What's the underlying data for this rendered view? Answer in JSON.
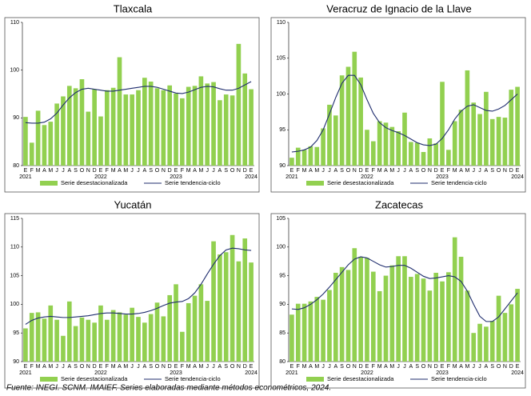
{
  "chart_data": [
    {
      "type": "bar",
      "title": "Tlaxcala",
      "categories": [
        "E",
        "F",
        "M",
        "A",
        "M",
        "J",
        "J",
        "A",
        "S",
        "O",
        "N",
        "D",
        "E",
        "F",
        "M",
        "A",
        "M",
        "J",
        "J",
        "A",
        "S",
        "O",
        "N",
        "D",
        "E",
        "F",
        "M",
        "A",
        "M",
        "J",
        "J",
        "A",
        "S",
        "O",
        "N",
        "D",
        "E"
      ],
      "x_years": [
        "2021",
        null,
        null,
        null,
        null,
        null,
        null,
        null,
        null,
        null,
        null,
        null,
        "2022",
        null,
        null,
        null,
        null,
        null,
        null,
        null,
        null,
        null,
        null,
        null,
        "2023",
        null,
        null,
        null,
        null,
        null,
        null,
        null,
        null,
        null,
        null,
        null,
        "2024"
      ],
      "ylim": [
        80,
        110
      ],
      "yticks": [
        80,
        90,
        100,
        110
      ],
      "series": [
        {
          "name": "Serie desestacionalizada",
          "type": "bar",
          "color": "#92d050",
          "values": [
            90.2,
            84.8,
            91.5,
            88.5,
            89.2,
            93.0,
            94.5,
            96.7,
            96.2,
            98.1,
            91.3,
            96.0,
            90.3,
            95.8,
            96.3,
            102.7,
            94.9,
            94.9,
            95.8,
            98.4,
            97.6,
            96.2,
            95.8,
            96.8,
            95.1,
            94.1,
            96.5,
            96.7,
            98.7,
            97.2,
            97.5,
            93.7,
            94.9,
            94.7,
            105.5,
            99.3,
            96.0
          ]
        },
        {
          "name": "Serie tendencia-ciclo",
          "type": "line",
          "color": "#1f2d6e",
          "values": [
            89.0,
            88.9,
            88.9,
            89.1,
            89.8,
            91.0,
            92.7,
            94.2,
            95.3,
            96.0,
            96.2,
            96.0,
            95.8,
            95.6,
            95.6,
            95.8,
            96.0,
            96.2,
            96.4,
            96.6,
            96.6,
            96.4,
            96.0,
            95.6,
            95.2,
            95.1,
            95.4,
            95.9,
            96.4,
            96.6,
            96.5,
            96.1,
            95.8,
            95.8,
            96.2,
            96.9,
            97.6
          ]
        }
      ]
    },
    {
      "type": "bar",
      "title": "Veracruz de Ignacio de la Llave",
      "categories": [
        "E",
        "F",
        "M",
        "A",
        "M",
        "J",
        "J",
        "A",
        "S",
        "O",
        "N",
        "D",
        "E",
        "F",
        "M",
        "A",
        "M",
        "J",
        "J",
        "A",
        "S",
        "O",
        "N",
        "D",
        "E",
        "F",
        "M",
        "A",
        "M",
        "J",
        "J",
        "A",
        "S",
        "O",
        "N",
        "D",
        "E"
      ],
      "x_years": [
        "2021",
        null,
        null,
        null,
        null,
        null,
        null,
        null,
        null,
        null,
        null,
        null,
        "2022",
        null,
        null,
        null,
        null,
        null,
        null,
        null,
        null,
        null,
        null,
        null,
        "2023",
        null,
        null,
        null,
        null,
        null,
        null,
        null,
        null,
        null,
        null,
        null,
        "2024"
      ],
      "ylim": [
        90,
        110
      ],
      "yticks": [
        90,
        95,
        100,
        105,
        110
      ],
      "series": [
        {
          "name": "Serie desestacionalizada",
          "type": "bar",
          "color": "#92d050",
          "values": [
            91.1,
            92.5,
            92.2,
            92.7,
            92.6,
            95.2,
            98.5,
            97.0,
            102.6,
            103.8,
            105.9,
            102.3,
            95.0,
            93.4,
            96.2,
            96.0,
            95.4,
            94.8,
            97.4,
            93.3,
            93.2,
            91.9,
            93.8,
            93.1,
            101.7,
            92.2,
            96.2,
            97.8,
            103.3,
            98.8,
            97.2,
            100.3,
            96.5,
            96.8,
            96.7,
            100.6,
            101.0
          ]
        },
        {
          "name": "Serie tendencia-ciclo",
          "type": "line",
          "color": "#1f2d6e",
          "values": [
            91.9,
            92.0,
            92.2,
            92.6,
            93.5,
            95.0,
            97.2,
            99.5,
            101.5,
            102.6,
            102.6,
            101.3,
            99.2,
            97.3,
            96.0,
            95.3,
            94.9,
            94.6,
            94.2,
            93.7,
            93.2,
            92.9,
            92.8,
            93.0,
            93.8,
            95.0,
            96.5,
            97.6,
            98.3,
            98.5,
            98.1,
            97.7,
            97.6,
            97.9,
            98.4,
            99.2,
            100.0
          ]
        }
      ]
    },
    {
      "type": "bar",
      "title": "Yucatán",
      "categories": [
        "E",
        "F",
        "M",
        "A",
        "M",
        "J",
        "J",
        "A",
        "S",
        "O",
        "N",
        "D",
        "E",
        "F",
        "M",
        "A",
        "M",
        "J",
        "J",
        "A",
        "S",
        "O",
        "N",
        "D",
        "E",
        "F",
        "M",
        "A",
        "M",
        "J",
        "J",
        "A",
        "S",
        "O",
        "N",
        "D",
        "E"
      ],
      "x_years": [
        "2021",
        null,
        null,
        null,
        null,
        null,
        null,
        null,
        null,
        null,
        null,
        null,
        "2022",
        null,
        null,
        null,
        null,
        null,
        null,
        null,
        null,
        null,
        null,
        null,
        "2023",
        null,
        null,
        null,
        null,
        null,
        null,
        null,
        null,
        null,
        null,
        null,
        "2024"
      ],
      "ylim": [
        90,
        115
      ],
      "yticks": [
        90,
        95,
        100,
        105,
        110,
        115
      ],
      "series": [
        {
          "name": "Serie desestacionalizada",
          "type": "bar",
          "color": "#92d050",
          "values": [
            95.8,
            98.5,
            98.6,
            97.5,
            99.8,
            97.3,
            94.5,
            100.5,
            96.2,
            97.7,
            97.3,
            96.8,
            99.8,
            97.3,
            99.0,
            98.6,
            98.2,
            99.4,
            97.8,
            96.8,
            98.3,
            100.3,
            97.9,
            101.6,
            103.5,
            95.2,
            100.2,
            101.5,
            103.5,
            100.6,
            111.0,
            108.7,
            109.1,
            112.1,
            107.5,
            111.5,
            107.3
          ]
        },
        {
          "name": "Serie tendencia-ciclo",
          "type": "line",
          "color": "#1f2d6e",
          "values": [
            96.5,
            97.2,
            97.6,
            97.8,
            97.9,
            97.8,
            97.7,
            97.7,
            97.8,
            97.9,
            98.0,
            98.2,
            98.4,
            98.5,
            98.5,
            98.4,
            98.3,
            98.3,
            98.4,
            98.6,
            98.9,
            99.3,
            99.8,
            100.2,
            100.4,
            100.5,
            101.0,
            102.0,
            103.5,
            105.3,
            107.0,
            108.5,
            109.5,
            109.8,
            109.7,
            109.5,
            109.4
          ]
        }
      ]
    },
    {
      "type": "bar",
      "title": "Zacatecas",
      "categories": [
        "E",
        "F",
        "M",
        "A",
        "M",
        "J",
        "J",
        "A",
        "S",
        "O",
        "N",
        "D",
        "E",
        "F",
        "M",
        "A",
        "M",
        "J",
        "J",
        "A",
        "S",
        "O",
        "N",
        "D",
        "E",
        "F",
        "M",
        "A",
        "M",
        "J",
        "J",
        "A",
        "S",
        "O",
        "N",
        "D",
        "E"
      ],
      "x_years": [
        "2021",
        null,
        null,
        null,
        null,
        null,
        null,
        null,
        null,
        null,
        null,
        null,
        "2022",
        null,
        null,
        null,
        null,
        null,
        null,
        null,
        null,
        null,
        null,
        null,
        "2023",
        null,
        null,
        null,
        null,
        null,
        null,
        null,
        null,
        null,
        null,
        null,
        "2024"
      ],
      "ylim": [
        80,
        105
      ],
      "yticks": [
        80,
        85,
        90,
        95,
        100,
        105
      ],
      "series": [
        {
          "name": "Serie desestacionalizada",
          "type": "bar",
          "color": "#92d050",
          "values": [
            88.2,
            90.1,
            90.1,
            90.5,
            91.3,
            90.8,
            92.5,
            95.5,
            96.5,
            96.0,
            99.8,
            98.3,
            98.1,
            95.7,
            92.3,
            95.0,
            96.8,
            98.4,
            98.4,
            94.8,
            95.3,
            94.5,
            92.4,
            95.5,
            94.0,
            95.6,
            101.7,
            98.3,
            92.4,
            85.0,
            86.6,
            86.1,
            87.1,
            91.5,
            88.5,
            90.0,
            92.7
          ]
        },
        {
          "name": "Serie tendencia-ciclo",
          "type": "line",
          "color": "#1f2d6e",
          "values": [
            89.2,
            89.1,
            89.4,
            90.0,
            90.8,
            91.8,
            93.0,
            94.3,
            95.6,
            96.9,
            97.9,
            98.3,
            98.1,
            97.5,
            96.9,
            96.5,
            96.6,
            96.8,
            96.8,
            96.3,
            95.6,
            94.9,
            94.5,
            94.6,
            94.8,
            95.0,
            94.8,
            94.0,
            92.3,
            90.0,
            87.9,
            87.0,
            87.0,
            87.8,
            89.2,
            90.6,
            92.0
          ]
        }
      ]
    }
  ],
  "source": "Fuente: INEGI. SCNM. IMAIEF. Series elaboradas mediante métodos econométricos, 2024."
}
